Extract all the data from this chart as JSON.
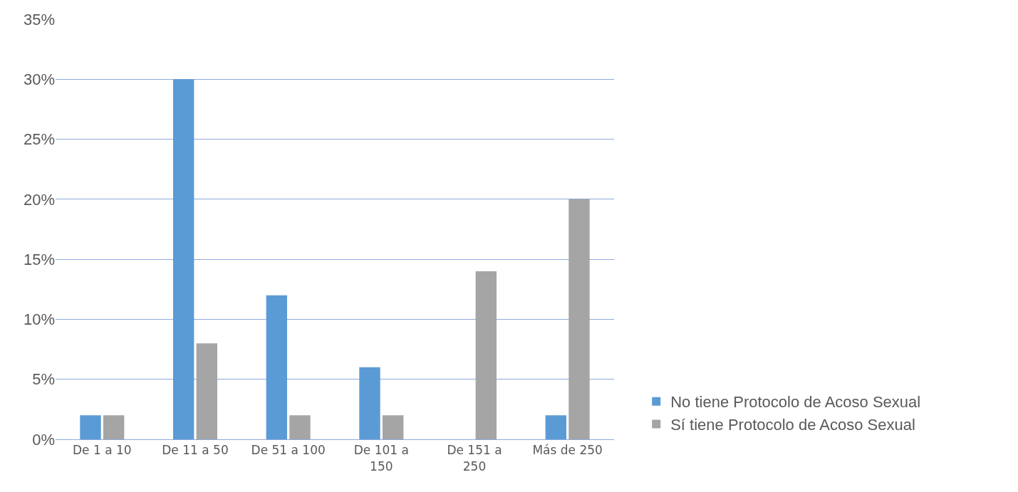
{
  "chart_data": {
    "type": "bar",
    "categories": [
      "De 1 a 10",
      "De 11 a 50",
      "De 51 a 100",
      "De 101 a 150",
      "De 151 a 250",
      "Más de 250"
    ],
    "series": [
      {
        "name": "No tiene Protocolo de Acoso Sexual",
        "color": "#5b9bd5",
        "values": [
          2,
          30,
          12,
          6,
          0,
          2
        ]
      },
      {
        "name": "Sí tiene Protocolo de Acoso Sexual",
        "color": "#a5a5a5",
        "values": [
          2,
          8,
          2,
          2,
          14,
          20
        ]
      }
    ],
    "ylim": [
      0,
      35
    ],
    "yticks": [
      {
        "value": 0,
        "label": "0%"
      },
      {
        "value": 5,
        "label": "5%"
      },
      {
        "value": 10,
        "label": "10%"
      },
      {
        "value": 15,
        "label": "15%"
      },
      {
        "value": 20,
        "label": "20%"
      },
      {
        "value": 25,
        "label": "25%"
      },
      {
        "value": 30,
        "label": "30%"
      },
      {
        "value": 35,
        "label": "35%"
      }
    ],
    "grid": "y",
    "legend": "bottom right"
  }
}
